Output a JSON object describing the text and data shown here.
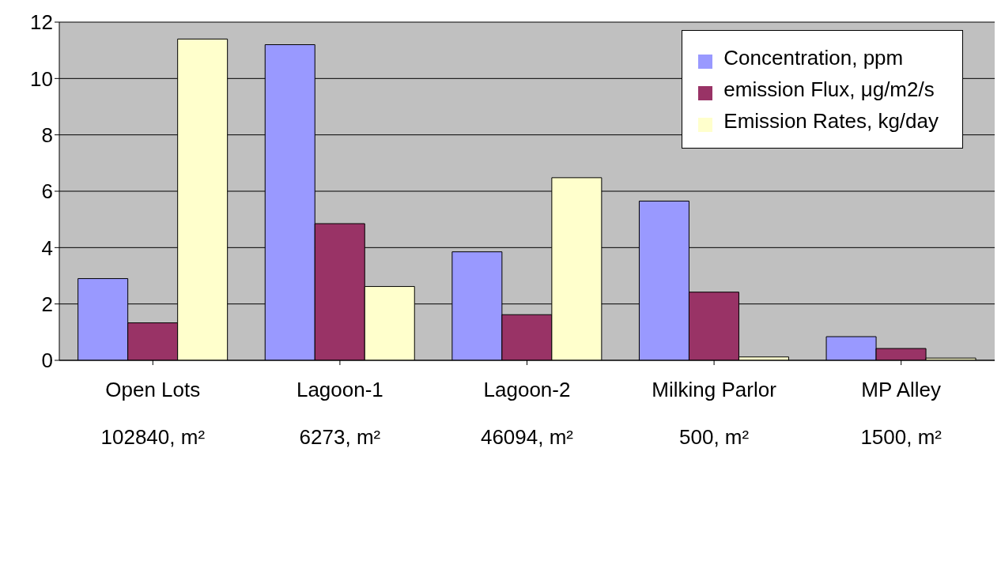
{
  "chart_data": {
    "type": "bar",
    "categories": [
      "Open Lots\n102840, m²",
      "Lagoon-1\n6273, m²",
      "Lagoon-2\n46094, m²",
      "Milking Parlor\n500, m²",
      "MP Alley\n1500, m²"
    ],
    "series": [
      {
        "name": "Concentration, ppm",
        "color": "#9999ff",
        "values": [
          2.9,
          11.2,
          3.85,
          5.65,
          0.84
        ]
      },
      {
        "name": "emission Flux, μg/m2/s",
        "color": "#993366",
        "values": [
          1.33,
          4.85,
          1.62,
          2.42,
          0.42
        ]
      },
      {
        "name": "Emission Rates, kg/day",
        "color": "#ffffcc",
        "values": [
          11.4,
          2.62,
          6.48,
          0.12,
          0.08
        ]
      }
    ],
    "ylim": [
      0,
      12
    ],
    "yticks": [
      0,
      2,
      4,
      6,
      8,
      10,
      12
    ],
    "grid": "y",
    "legend": "top right"
  }
}
